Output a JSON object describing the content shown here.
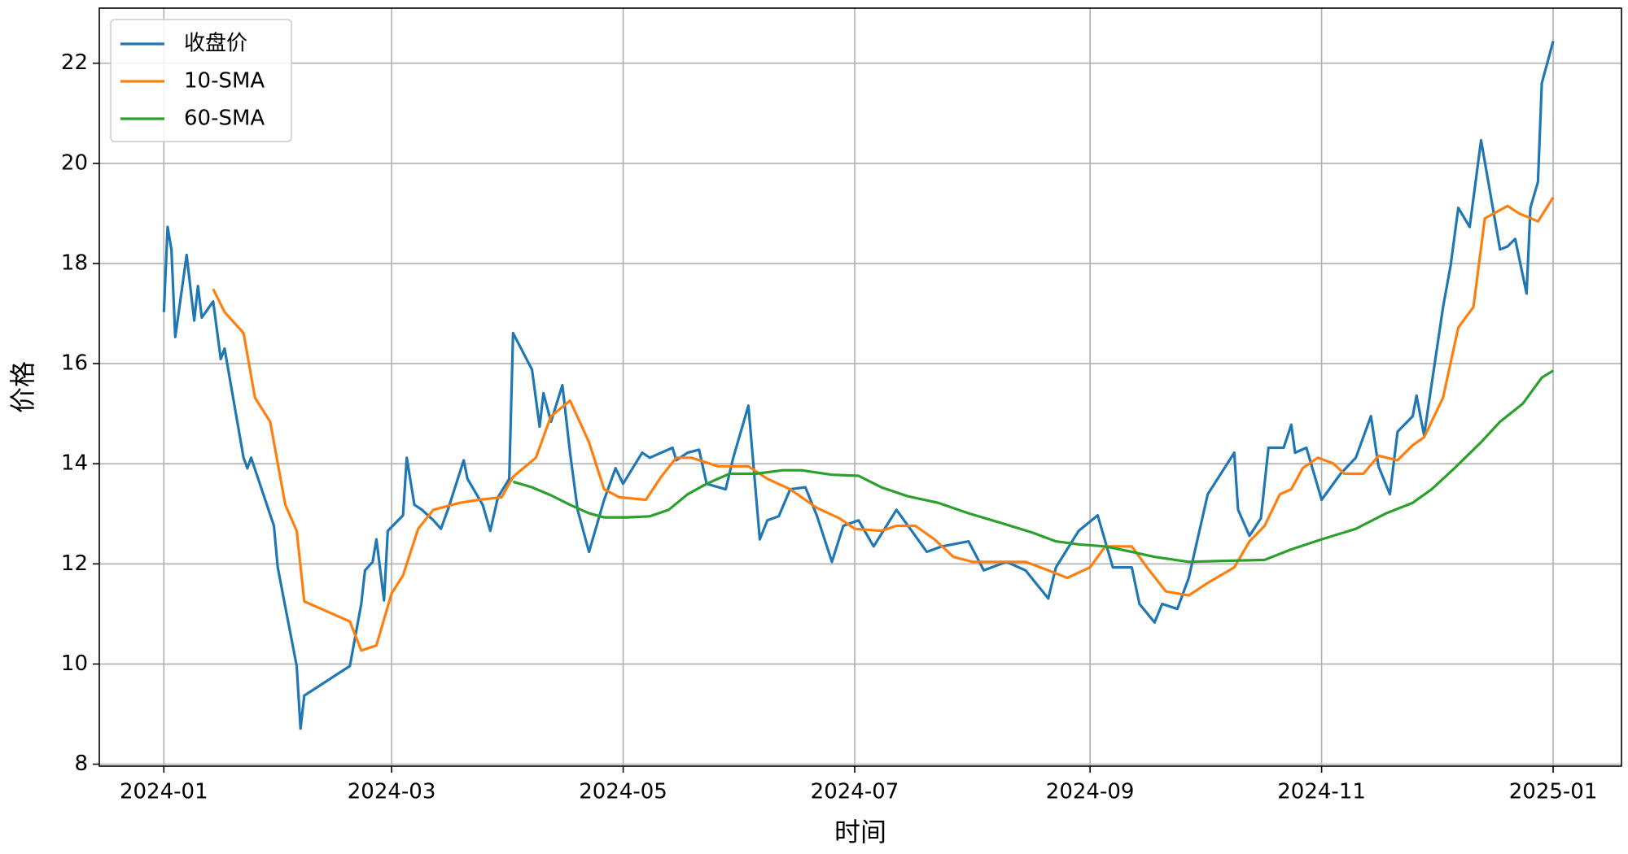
{
  "chart_data": {
    "type": "line",
    "x_label": "时间",
    "y_label": "价格",
    "xlim": [
      -17,
      384
    ],
    "ylim": [
      7.96,
      23.1
    ],
    "xticks": [
      {
        "value": 0,
        "label": "2024-01"
      },
      {
        "value": 60,
        "label": "2024-03"
      },
      {
        "value": 121,
        "label": "2024-05"
      },
      {
        "value": 182,
        "label": "2024-07"
      },
      {
        "value": 244,
        "label": "2024-09"
      },
      {
        "value": 305,
        "label": "2024-11"
      },
      {
        "value": 366,
        "label": "2025-01"
      }
    ],
    "yticks": [
      8,
      10,
      12,
      14,
      16,
      18,
      20,
      22
    ],
    "grid": true,
    "legend": "upper left",
    "series": [
      {
        "name": "收盘价",
        "color": "#1f77b4",
        "x": [
          0,
          1,
          2,
          3,
          6,
          8,
          9,
          10,
          13,
          15,
          16,
          21,
          22,
          23,
          29,
          30,
          32,
          35,
          36,
          37,
          49,
          52,
          53,
          55,
          56,
          58,
          59,
          63,
          64,
          66,
          68,
          71,
          73,
          75,
          79,
          80,
          84,
          86,
          88,
          91,
          92,
          97,
          99,
          100,
          102,
          105,
          107,
          109,
          112,
          116,
          119,
          121,
          126,
          128,
          134,
          135,
          138,
          141,
          143,
          148,
          150,
          154,
          157,
          159,
          162,
          165,
          169,
          172,
          176,
          179,
          183,
          187,
          193,
          197,
          201,
          205,
          212,
          216,
          222,
          227,
          233,
          235,
          241,
          246,
          250,
          255,
          257,
          261,
          263,
          267,
          270,
          275,
          282,
          283,
          286,
          289,
          291,
          295,
          297,
          298,
          301,
          303,
          305,
          310,
          314,
          318,
          320,
          323,
          325,
          329,
          330,
          332,
          337,
          339,
          341,
          344,
          347,
          352,
          354,
          356,
          359,
          360,
          362,
          363,
          366
        ],
        "values": [
          17.03,
          18.73,
          18.28,
          16.53,
          18.17,
          16.86,
          17.55,
          16.92,
          17.24,
          16.09,
          16.3,
          14.12,
          13.91,
          14.12,
          12.76,
          11.93,
          11.14,
          9.96,
          8.71,
          9.37,
          9.96,
          11.2,
          11.87,
          12.04,
          12.49,
          11.27,
          12.66,
          12.97,
          14.12,
          13.18,
          13.08,
          12.87,
          12.7,
          13.12,
          14.07,
          13.7,
          13.18,
          12.66,
          13.33,
          13.7,
          16.61,
          15.88,
          14.74,
          15.41,
          14.84,
          15.57,
          14.22,
          13.08,
          12.24,
          13.28,
          13.91,
          13.6,
          14.22,
          14.12,
          14.32,
          14.07,
          14.22,
          14.28,
          13.6,
          13.49,
          14.12,
          15.16,
          12.49,
          12.87,
          12.95,
          13.49,
          13.53,
          12.97,
          12.04,
          12.76,
          12.87,
          12.35,
          13.08,
          12.66,
          12.24,
          12.35,
          12.45,
          11.87,
          12.04,
          11.87,
          11.31,
          11.93,
          12.66,
          12.97,
          11.93,
          11.93,
          11.2,
          10.83,
          11.2,
          11.1,
          11.72,
          13.39,
          14.22,
          13.08,
          12.56,
          12.91,
          14.32,
          14.32,
          14.78,
          14.22,
          14.32,
          13.8,
          13.28,
          13.8,
          14.12,
          14.95,
          13.95,
          13.39,
          14.64,
          14.95,
          15.36,
          14.57,
          17.13,
          17.96,
          19.11,
          18.73,
          20.46,
          18.28,
          18.34,
          18.49,
          17.4,
          19.11,
          19.63,
          21.6,
          22.44
        ]
      },
      {
        "name": "10-SMA",
        "color": "#ff7f0e",
        "x": [
          13,
          16,
          21,
          24,
          28,
          32,
          35,
          37,
          49,
          52,
          56,
          60,
          63,
          67,
          71,
          78,
          83,
          89,
          92,
          98,
          102,
          107,
          112,
          116,
          120,
          127,
          131,
          135,
          139,
          146,
          154,
          159,
          165,
          172,
          178,
          182,
          189,
          193,
          198,
          203,
          208,
          213,
          220,
          227,
          233,
          238,
          244,
          248,
          255,
          259,
          264,
          270,
          275,
          282,
          286,
          290,
          294,
          297,
          300,
          304,
          308,
          311,
          316,
          320,
          325,
          329,
          332,
          337,
          341,
          345,
          348,
          354,
          357,
          362,
          366
        ],
        "values": [
          17.49,
          17.03,
          16.61,
          15.32,
          14.84,
          13.18,
          12.66,
          11.25,
          10.85,
          10.27,
          10.37,
          11.41,
          11.77,
          12.7,
          13.08,
          13.22,
          13.28,
          13.33,
          13.74,
          14.12,
          14.95,
          15.26,
          14.43,
          13.49,
          13.33,
          13.28,
          13.74,
          14.12,
          14.12,
          13.95,
          13.95,
          13.7,
          13.49,
          13.12,
          12.91,
          12.7,
          12.66,
          12.76,
          12.76,
          12.49,
          12.14,
          12.04,
          12.04,
          12.04,
          11.87,
          11.72,
          11.93,
          12.35,
          12.35,
          11.93,
          11.45,
          11.37,
          11.62,
          11.93,
          12.45,
          12.76,
          13.39,
          13.49,
          13.91,
          14.12,
          14.01,
          13.8,
          13.8,
          14.16,
          14.07,
          14.37,
          14.53,
          15.32,
          16.72,
          17.13,
          18.9,
          19.15,
          19.0,
          18.84,
          19.32
        ]
      },
      {
        "name": "60-SMA",
        "color": "#2ca02c",
        "x": [
          92,
          97,
          102,
          107,
          112,
          116,
          122,
          128,
          133,
          138,
          143,
          149,
          156,
          163,
          168,
          176,
          183,
          189,
          196,
          204,
          212,
          220,
          229,
          235,
          241,
          248,
          255,
          261,
          270,
          279,
          290,
          297,
          305,
          314,
          322,
          329,
          334,
          340,
          347,
          352,
          358,
          363,
          366
        ],
        "values": [
          13.64,
          13.53,
          13.37,
          13.18,
          13.01,
          12.93,
          12.93,
          12.95,
          13.08,
          13.39,
          13.6,
          13.8,
          13.8,
          13.87,
          13.87,
          13.78,
          13.76,
          13.53,
          13.35,
          13.22,
          13.01,
          12.83,
          12.62,
          12.45,
          12.39,
          12.35,
          12.24,
          12.14,
          12.04,
          12.06,
          12.08,
          12.29,
          12.49,
          12.7,
          13.01,
          13.22,
          13.49,
          13.91,
          14.43,
          14.84,
          15.2,
          15.72,
          15.86
        ]
      }
    ]
  }
}
